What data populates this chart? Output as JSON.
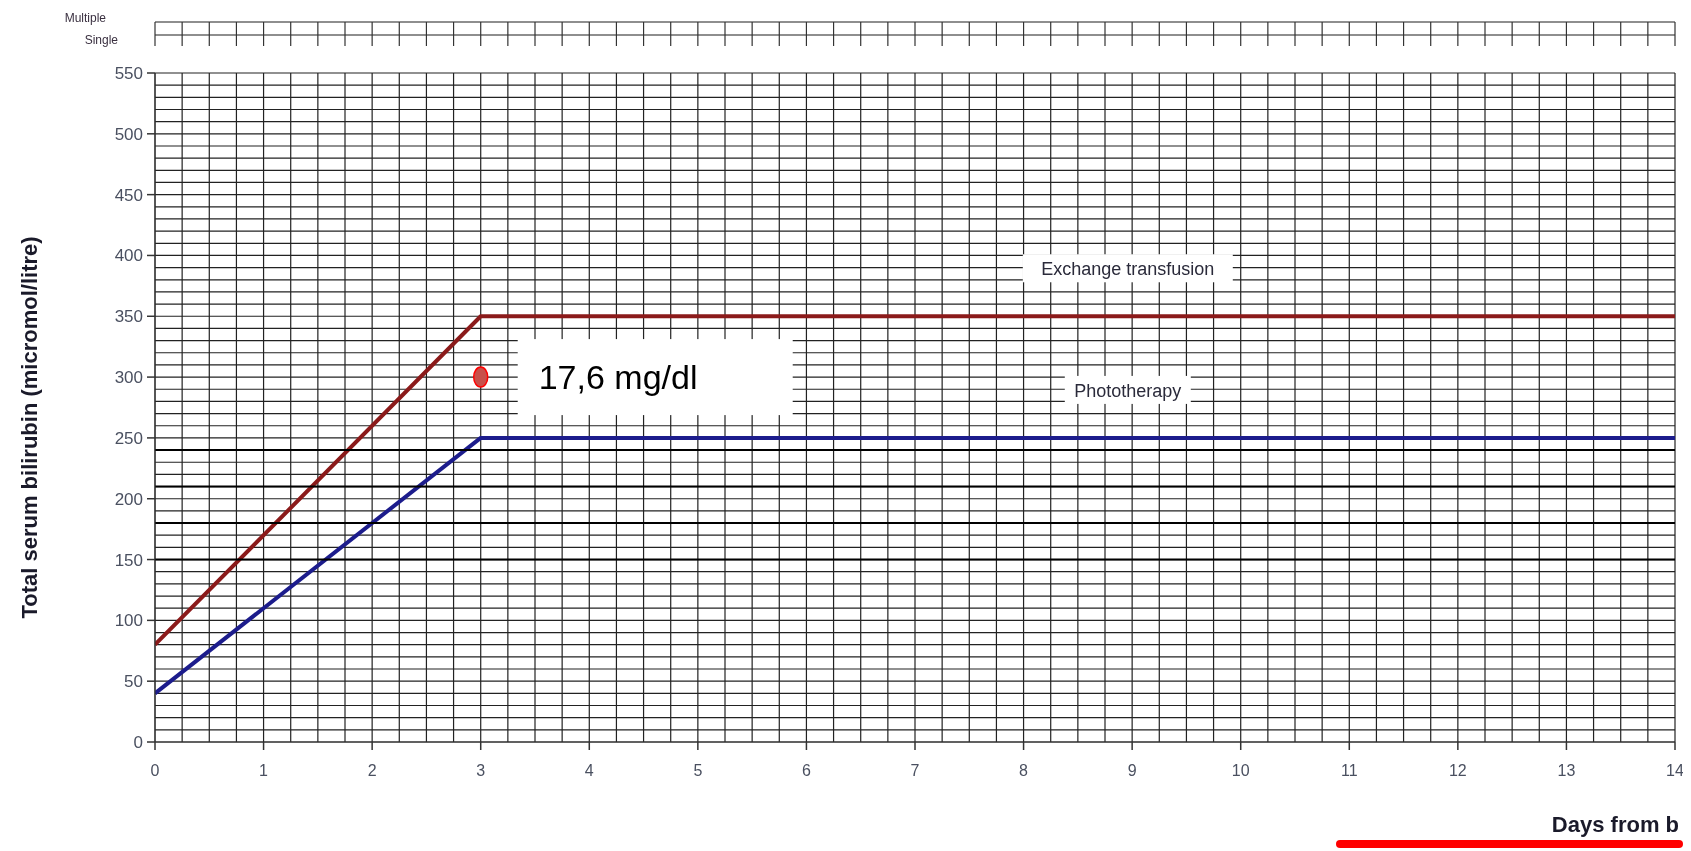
{
  "chart_data": {
    "type": "line",
    "xlabel": "Days from b",
    "ylabel": "Total serum bilirubin (micromol/litre)",
    "series": [
      {
        "name": "Exchange transfusion",
        "color": "#8b1a1a",
        "x": [
          0,
          3,
          14
        ],
        "values": [
          80,
          350,
          350
        ]
      },
      {
        "name": "Phototherapy",
        "color": "#1c1c8c",
        "x": [
          0,
          3,
          14
        ],
        "values": [
          40,
          250,
          250
        ]
      },
      {
        "type": "scatter",
        "marker": "circle",
        "color": "#c8504a",
        "x": [
          3
        ],
        "values": [
          300
        ]
      },
      {
        "color": "#000000",
        "x": [
          0,
          14
        ],
        "values": [
          240,
          240
        ]
      },
      {
        "color": "#000000",
        "x": [
          0,
          14
        ],
        "values": [
          210,
          210
        ]
      },
      {
        "color": "#000000",
        "x": [
          0,
          14
        ],
        "values": [
          180,
          180
        ]
      },
      {
        "color": "#000000",
        "x": [
          0,
          14
        ],
        "values": [
          150,
          150
        ]
      }
    ],
    "annotations": [
      "Multiple",
      "Single",
      {
        "text": "17,6 mg/dl",
        "x": 3,
        "y": 300
      }
    ],
    "xlim": [
      0,
      14
    ],
    "xticks": [
      0,
      {
        "value": 0.25,
        "label": null
      },
      {
        "value": 0.5,
        "label": null
      },
      {
        "value": 0.75,
        "label": null
      },
      1,
      {
        "value": 1.25,
        "label": null
      },
      {
        "value": 1.5,
        "label": null
      },
      {
        "value": 1.75,
        "label": null
      },
      2,
      {
        "value": 2.25,
        "label": null
      },
      {
        "value": 2.5,
        "label": null
      },
      {
        "value": 2.75,
        "label": null
      },
      3,
      {
        "value": 3.25,
        "label": null
      },
      {
        "value": 3.5,
        "label": null
      },
      {
        "value": 3.75,
        "label": null
      },
      4,
      {
        "value": 4.25,
        "label": null
      },
      {
        "value": 4.5,
        "label": null
      },
      {
        "value": 4.75,
        "label": null
      },
      5,
      {
        "value": 5.25,
        "label": null
      },
      {
        "value": 5.5,
        "label": null
      },
      {
        "value": 5.75,
        "label": null
      },
      6,
      {
        "value": 6.25,
        "label": null
      },
      {
        "value": 6.5,
        "label": null
      },
      {
        "value": 6.75,
        "label": null
      },
      7,
      {
        "value": 7.25,
        "label": null
      },
      {
        "value": 7.5,
        "label": null
      },
      {
        "value": 7.75,
        "label": null
      },
      8,
      {
        "value": 8.25,
        "label": null
      },
      {
        "value": 8.5,
        "label": null
      },
      {
        "value": 8.75,
        "label": null
      },
      9,
      {
        "value": 9.25,
        "label": null
      },
      {
        "value": 9.5,
        "label": null
      },
      {
        "value": 9.75,
        "label": null
      },
      10,
      {
        "value": 10.25,
        "label": null
      },
      {
        "value": 10.5,
        "label": null
      },
      {
        "value": 10.75,
        "label": null
      },
      11,
      {
        "value": 11.25,
        "label": null
      },
      {
        "value": 11.5,
        "label": null
      },
      {
        "value": 11.75,
        "label": null
      },
      12,
      {
        "value": 12.25,
        "label": null
      },
      {
        "value": 12.5,
        "label": null
      },
      {
        "value": 12.75,
        "label": null
      },
      13,
      {
        "value": 13.25,
        "label": null
      },
      {
        "value": 13.5,
        "label": null
      },
      {
        "value": 13.75,
        "label": null
      },
      14
    ],
    "ylim": [
      0,
      550
    ],
    "yticks": [
      0,
      {
        "value": 10,
        "label": null
      },
      {
        "value": 20,
        "label": null
      },
      {
        "value": 30,
        "label": null
      },
      {
        "value": 40,
        "label": null
      },
      50,
      {
        "value": 60,
        "label": null
      },
      {
        "value": 70,
        "label": null
      },
      {
        "value": 80,
        "label": null
      },
      {
        "value": 90,
        "label": null
      },
      100,
      {
        "value": 110,
        "label": null
      },
      {
        "value": 120,
        "label": null
      },
      {
        "value": 130,
        "label": null
      },
      {
        "value": 140,
        "label": null
      },
      150,
      {
        "value": 160,
        "label": null
      },
      {
        "value": 170,
        "label": null
      },
      {
        "value": 180,
        "label": null
      },
      {
        "value": 190,
        "label": null
      },
      200,
      {
        "value": 210,
        "label": null
      },
      {
        "value": 220,
        "label": null
      },
      {
        "value": 230,
        "label": null
      },
      {
        "value": 240,
        "label": null
      },
      250,
      {
        "value": 260,
        "label": null
      },
      {
        "value": 270,
        "label": null
      },
      {
        "value": 280,
        "label": null
      },
      {
        "value": 290,
        "label": null
      },
      300,
      {
        "value": 310,
        "label": null
      },
      {
        "value": 320,
        "label": null
      },
      {
        "value": 330,
        "label": null
      },
      {
        "value": 340,
        "label": null
      },
      350,
      {
        "value": 360,
        "label": null
      },
      {
        "value": 370,
        "label": null
      },
      {
        "value": 380,
        "label": null
      },
      {
        "value": 390,
        "label": null
      },
      400,
      {
        "value": 410,
        "label": null
      },
      {
        "value": 420,
        "label": null
      },
      {
        "value": 430,
        "label": null
      },
      {
        "value": 440,
        "label": null
      },
      450,
      {
        "value": 460,
        "label": null
      },
      {
        "value": 470,
        "label": null
      },
      {
        "value": 480,
        "label": null
      },
      {
        "value": 490,
        "label": null
      },
      500,
      {
        "value": 510,
        "label": null
      },
      {
        "value": 520,
        "label": null
      },
      {
        "value": 530,
        "label": null
      },
      {
        "value": 540,
        "label": null
      },
      550
    ],
    "grid": true,
    "legend": false
  }
}
